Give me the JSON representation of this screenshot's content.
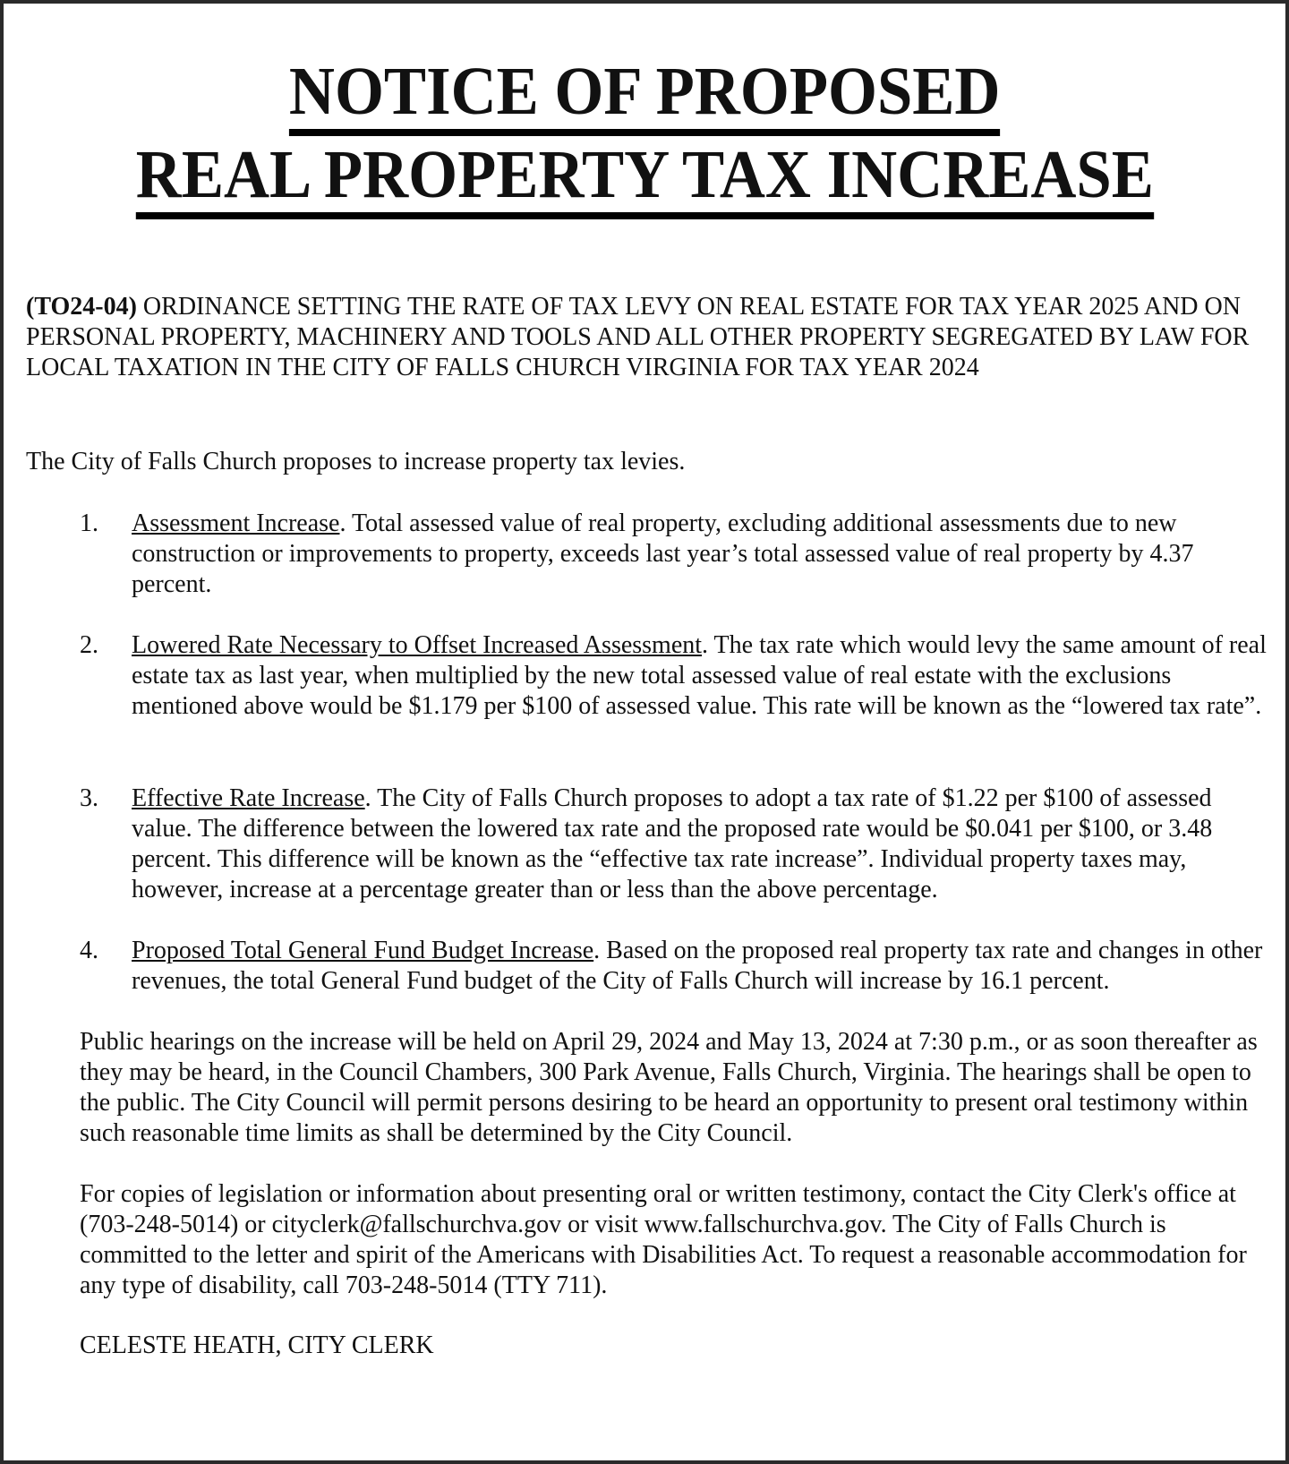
{
  "title": {
    "line1": "NOTICE OF PROPOSED",
    "line2": "REAL PROPERTY TAX INCREASE"
  },
  "ordinance": {
    "code": "(TO24-04)",
    "text": " ORDINANCE SETTING THE RATE OF TAX LEVY ON REAL ESTATE FOR TAX YEAR 2025 AND ON PERSONAL PROPERTY, MACHINERY AND TOOLS AND ALL OTHER PROPERTY SEGREGATED BY LAW FOR LOCAL TAXATION IN THE CITY OF FALLS CHURCH VIRGINIA FOR TAX YEAR 2024"
  },
  "intro": "The City of Falls Church proposes to increase property tax levies.",
  "items": [
    {
      "num": "1.",
      "heading": "Assessment Increase",
      "text": ".  Total assessed value of real property, excluding additional assessments due to new construction or improvements to property, exceeds last year’s total assessed value of real property by 4.37 percent."
    },
    {
      "num": "2.",
      "heading": "Lowered Rate Necessary to Offset Increased Assessment",
      "text": ". The tax rate which would levy the same amount of real estate tax as last year, when multiplied by the new total assessed value of real estate with the exclusions mentioned above would be $1.179 per $100 of assessed value. This rate will be known as the “lowered tax rate”."
    },
    {
      "num": "3.",
      "heading": "Effective Rate Increase",
      "text": ". The City of Falls Church proposes to adopt a tax rate of $1.22 per $100 of assessed value. The difference between the lowered tax rate and the proposed rate would be $0.041 per $100, or 3.48 percent. This difference will be known as the “effective tax rate increase”.  Individual property taxes may, however, increase at a percentage greater than or less than the above percentage."
    },
    {
      "num": "4.",
      "heading": "Proposed Total General Fund Budget Increase",
      "text": ". Based on the proposed real property tax rate and changes in other revenues, the total General Fund budget of the City of Falls Church will increase by 16.1 percent."
    }
  ],
  "hearings": "Public hearings on the increase will be held on April 29, 2024 and May 13, 2024 at 7:30 p.m., or as soon thereafter as they may be heard, in the Council Chambers, 300 Park Avenue, Falls Church, Virginia. The hearings shall be open to the public. The City Council will permit persons desiring to be heard an opportunity to present oral testimony within such reasonable time limits as shall be determined by the City Council.",
  "contact": "For copies of legislation or information about presenting oral or written testimony, contact the City Clerk's office at (703-248-5014) or cityclerk@fallschurchva.gov or visit www.fallschurchva.gov. The City of Falls Church is committed to the letter and spirit of the Americans with Disabilities Act.  To request a reasonable accommodation for any type of disability, call 703-248-5014 (TTY 711).",
  "signature": "CELESTE HEATH, CITY CLERK"
}
